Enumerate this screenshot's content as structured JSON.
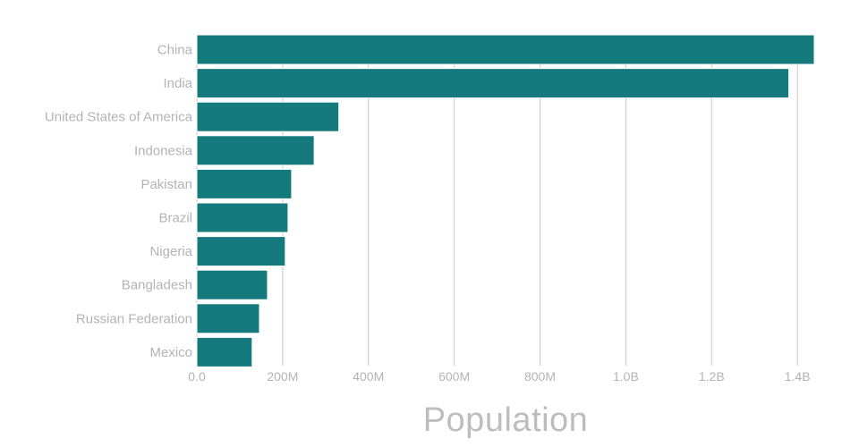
{
  "chart_data": {
    "type": "bar",
    "orientation": "horizontal",
    "categories": [
      "China",
      "India",
      "United States of America",
      "Indonesia",
      "Pakistan",
      "Brazil",
      "Nigeria",
      "Bangladesh",
      "Russian Federation",
      "Mexico"
    ],
    "values": [
      1439323776,
      1380004385,
      331002651,
      273523615,
      220892340,
      212559417,
      206139589,
      164689383,
      145934462,
      128932753
    ],
    "xlabel": "Population",
    "ylabel": "",
    "xlim": [
      0,
      1439323776
    ],
    "x_ticks": [
      {
        "value": 0,
        "label": "0.0"
      },
      {
        "value": 200000000,
        "label": "200M"
      },
      {
        "value": 400000000,
        "label": "400M"
      },
      {
        "value": 600000000,
        "label": "600M"
      },
      {
        "value": 800000000,
        "label": "800M"
      },
      {
        "value": 1000000000,
        "label": "1.0B"
      },
      {
        "value": 1200000000,
        "label": "1.2B"
      },
      {
        "value": 1400000000,
        "label": "1.4B"
      }
    ],
    "grid": true,
    "bar_color": "#157a7d"
  }
}
